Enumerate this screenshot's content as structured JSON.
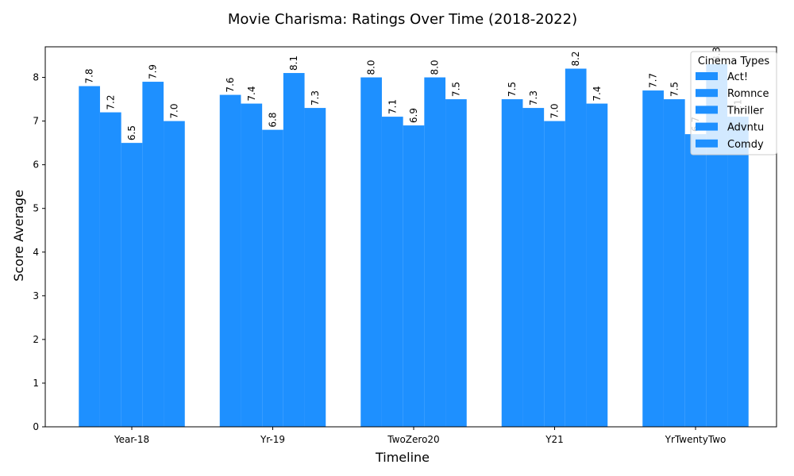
{
  "chart_data": {
    "type": "bar",
    "title": "Movie Charisma: Ratings Over Time (2018-2022)",
    "xlabel": "Timeline",
    "ylabel": "Score Average",
    "categories": [
      "Year-18",
      "Yr-19",
      "TwoZero20",
      "Y21",
      "YrTwentyTwo"
    ],
    "series": [
      {
        "name": "Act!",
        "values": [
          7.8,
          7.6,
          8.0,
          7.5,
          7.7
        ]
      },
      {
        "name": "Romnce",
        "values": [
          7.2,
          7.4,
          7.1,
          7.3,
          7.5
        ]
      },
      {
        "name": "Thriller",
        "values": [
          6.5,
          6.8,
          6.9,
          7.0,
          6.7
        ]
      },
      {
        "name": "Advntu",
        "values": [
          7.9,
          8.1,
          8.0,
          8.2,
          8.3
        ]
      },
      {
        "name": "Comdy",
        "values": [
          7.0,
          7.3,
          7.5,
          7.4,
          7.1
        ]
      }
    ],
    "value_labels": [
      [
        "7.8",
        "7.6",
        "8.0",
        "7.5",
        "7.7"
      ],
      [
        "7.2",
        "7.4",
        "7.1",
        "7.3",
        "7.5"
      ],
      [
        "6.5",
        "6.8",
        "6.9",
        "7.0",
        "6.7"
      ],
      [
        "7.9",
        "8.1",
        "8.0",
        "8.2",
        "8.3"
      ],
      [
        "7.0",
        "7.3",
        "7.5",
        "7.4",
        "7.1"
      ]
    ],
    "ylim": [
      0,
      8.7
    ],
    "yticks": [
      "0",
      "1",
      "2",
      "3",
      "4",
      "5",
      "6",
      "7",
      "8"
    ],
    "legend_title": "Cinema Types",
    "legend_position": "top-right",
    "bar_color": "#1e90ff",
    "grid": false
  }
}
